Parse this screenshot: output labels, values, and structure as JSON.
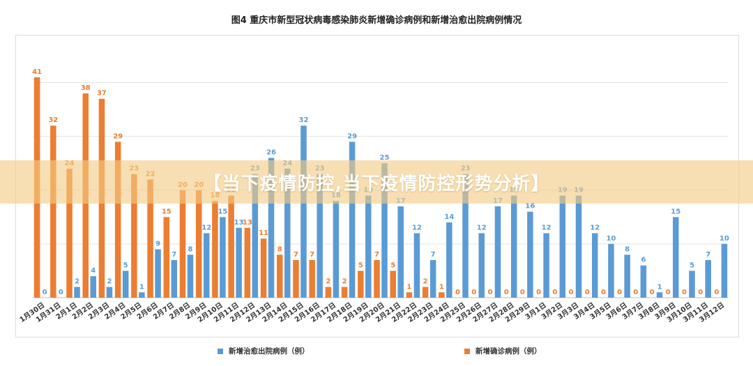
{
  "banner": {
    "text": "【当下疫情防控,当下疫情防控形势分析】"
  },
  "colors": {
    "discharged": "#5b9bd5",
    "confirmed": "#ed7d31",
    "background": "#ffffff",
    "banner": "#f3cb84"
  },
  "chart_data": {
    "type": "bar",
    "title": "图4    重庆市新型冠状病毒感染肺炎新增确诊病例和新增治愈出院病例情况",
    "categories": [
      "1月30日",
      "1月31日",
      "2月1日",
      "2月2日",
      "2月3日",
      "2月4日",
      "2月5日",
      "2月6日",
      "2月7日",
      "2月8日",
      "2月9日",
      "2月10日",
      "2月11日",
      "2月12日",
      "2月13日",
      "2月14日",
      "2月15日",
      "2月16日",
      "2月17日",
      "2月18日",
      "2月19日",
      "2月20日",
      "2月21日",
      "2月22日",
      "2月23日",
      "2月24日",
      "2月25日",
      "2月26日",
      "2月27日",
      "2月28日",
      "2月29日",
      "3月1日",
      "3月2日",
      "3月3日",
      "3月4日",
      "3月5日",
      "3月6日",
      "3月7日",
      "3月8日",
      "3月9日",
      "3月10日",
      "3月11日",
      "3月12日"
    ],
    "series": [
      {
        "name": "新增治愈出院病例（例）",
        "color": "#5b9bd5",
        "values": [
          0,
          0,
          2,
          4,
          2,
          5,
          1,
          9,
          7,
          8,
          12,
          15,
          13,
          23,
          26,
          24,
          32,
          23,
          18,
          29,
          19,
          25,
          17,
          12,
          7,
          14,
          23,
          12,
          17,
          19,
          16,
          12,
          19,
          19,
          12,
          10,
          8,
          6,
          1,
          15,
          5,
          7,
          10
        ]
      },
      {
        "name": "新增确诊病例（例）",
        "color": "#ed7d31",
        "values": [
          41,
          32,
          24,
          38,
          37,
          29,
          23,
          22,
          15,
          20,
          20,
          18,
          19,
          13,
          11,
          8,
          7,
          7,
          2,
          2,
          5,
          7,
          5,
          1,
          2,
          1,
          0,
          0,
          0,
          0,
          0,
          0,
          0,
          0,
          0,
          0,
          0,
          0,
          0,
          0,
          0,
          0,
          0
        ]
      }
    ],
    "ylim": [
      0,
      45
    ],
    "grid": true,
    "legend": "bottom"
  }
}
